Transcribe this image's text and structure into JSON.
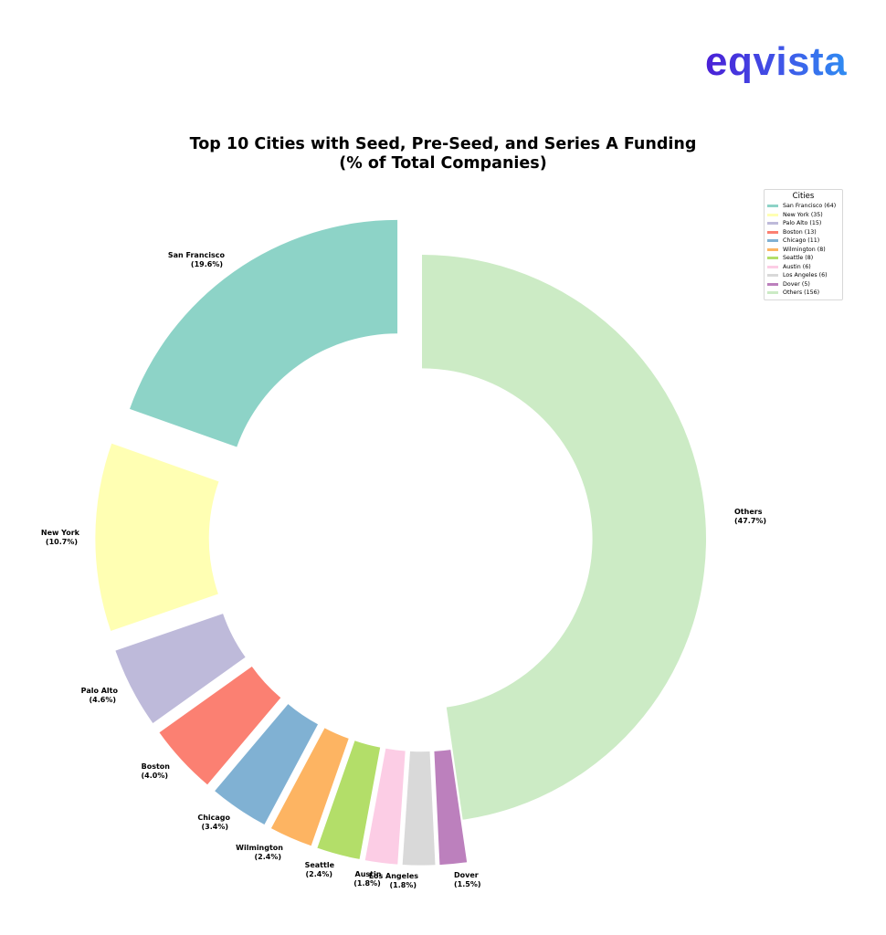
{
  "logo": {
    "text": "eqvista",
    "gradient_start": "#4a1fd6",
    "gradient_end": "#2f8cf2"
  },
  "chart_data": {
    "type": "pie",
    "subtype": "donut",
    "title": "Top 10 Cities with Seed, Pre-Seed, and Series A Funding",
    "subtitle": "(% of Total Companies)",
    "title_lines": [
      "Top 10 Cities with Seed, Pre-Seed, and Series A Funding",
      "(% of Total Companies)"
    ],
    "legend_title": "Cities",
    "legend_position": "upper right",
    "categories": [
      "San Francisco",
      "New York",
      "Palo Alto",
      "Boston",
      "Chicago",
      "Wilmington",
      "Seattle",
      "Austin",
      "Los Angeles",
      "Dover",
      "Others"
    ],
    "values": [
      64,
      35,
      15,
      13,
      11,
      8,
      8,
      6,
      6,
      5,
      156
    ],
    "percentages": [
      19.6,
      10.7,
      4.6,
      4.0,
      3.4,
      2.4,
      2.4,
      1.8,
      1.8,
      1.5,
      47.7
    ],
    "colors": [
      "#8dd3c7",
      "#ffffb3",
      "#bebada",
      "#fb8072",
      "#80b1d3",
      "#fdb462",
      "#b3de69",
      "#fccde5",
      "#d9d9d9",
      "#bc80bd",
      "#ccebc5"
    ],
    "explode": [
      0.15,
      0.15,
      0.15,
      0.15,
      0.15,
      0.15,
      0.15,
      0.15,
      0.15,
      0.15,
      0
    ],
    "start_angle": 90,
    "counterclock": true,
    "ring_width_fraction": 0.4,
    "slice_labels": [
      {
        "name": "San Francisco",
        "pct": "(19.6%)"
      },
      {
        "name": "New York",
        "pct": "(10.7%)"
      },
      {
        "name": "Palo Alto",
        "pct": "(4.6%)"
      },
      {
        "name": "Boston",
        "pct": "(4.0%)"
      },
      {
        "name": "Chicago",
        "pct": "(3.4%)"
      },
      {
        "name": "Wilmington",
        "pct": "(2.4%)"
      },
      {
        "name": "Seattle",
        "pct": "(2.4%)"
      },
      {
        "name": "Austin",
        "pct": "(1.8%)"
      },
      {
        "name": "Los Angeles",
        "pct": "(1.8%)"
      },
      {
        "name": "Dover",
        "pct": "(1.5%)"
      },
      {
        "name": "Others",
        "pct": "(47.7%)"
      }
    ],
    "legend_entries": [
      "San Francisco (64)",
      "New York (35)",
      "Palo Alto (15)",
      "Boston (13)",
      "Chicago (11)",
      "Wilmington (8)",
      "Seattle (8)",
      "Austin (6)",
      "Los Angeles (6)",
      "Dover (5)",
      "Others (156)"
    ]
  }
}
